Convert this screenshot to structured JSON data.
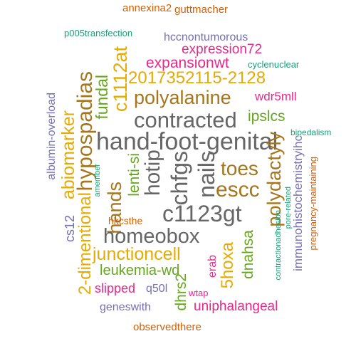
{
  "words": [
    {
      "id": "annexina2",
      "text": "annexina2",
      "color": "#d95f02"
    },
    {
      "id": "guttmacher",
      "text": "guttmacher",
      "color": "#d95f02"
    },
    {
      "id": "p005transfection",
      "text": "p005transfection",
      "color": "#1b9e77"
    },
    {
      "id": "hccnontumorous",
      "text": "hccnontumorous",
      "color": "#7570b3"
    },
    {
      "id": "expression72",
      "text": "expression72",
      "color": "#e7298a"
    },
    {
      "id": "expansionwt",
      "text": "expansionwt",
      "color": "#e7298a"
    },
    {
      "id": "cyclenuclear",
      "text": "cyclenuclear",
      "color": "#1b9e77"
    },
    {
      "id": "2017352115-2128",
      "text": "2017352115-2128",
      "color": "#e6ab02"
    },
    {
      "id": "c1112at",
      "text": "c1112at",
      "color": "#e6ab02"
    },
    {
      "id": "polyalanine",
      "text": "polyalanine",
      "color": "#a6761d"
    },
    {
      "id": "wdr5mll",
      "text": "wdr5mll",
      "color": "#e7298a"
    },
    {
      "id": "fundal",
      "text": "fundal",
      "color": "#66a61e"
    },
    {
      "id": "contracted",
      "text": "contracted",
      "color": "#666666"
    },
    {
      "id": "ipslcs",
      "text": "ipslcs",
      "color": "#66a61e"
    },
    {
      "id": "hypospadias",
      "text": "hypospadias",
      "color": "#a6761d"
    },
    {
      "id": "abiomarker",
      "text": "abiomarker",
      "color": "#e6ab02"
    },
    {
      "id": "hand-foot-genital",
      "text": "hand-foot-genital",
      "color": "#666666"
    },
    {
      "id": "bipedalism",
      "text": "bipedalism",
      "color": "#1b9e77"
    },
    {
      "id": "albumin-overload",
      "text": "albumin-overload",
      "color": "#7570b3"
    },
    {
      "id": "toes",
      "text": "toes",
      "color": "#a6761d"
    },
    {
      "id": "lenti-si",
      "text": "lenti-si",
      "color": "#66a61e"
    },
    {
      "id": "hotip",
      "text": "hotip",
      "color": "#666666"
    },
    {
      "id": "chfgs",
      "text": "chfgs",
      "color": "#666666"
    },
    {
      "id": "nails",
      "text": "nails",
      "color": "#666666"
    },
    {
      "id": "escc",
      "text": "escc",
      "color": "#a6761d"
    },
    {
      "id": "polydactyly",
      "text": "polydactyly",
      "color": "#a6761d"
    },
    {
      "id": "immunohistochemistryihc",
      "text": "immunohistochemistryihc",
      "color": "#7570b3"
    },
    {
      "id": "pregnancy-maintaining",
      "text": "pregnancy-maintaining",
      "color": "#d95f02"
    },
    {
      "id": "amember",
      "text": "amember",
      "color": "#1b9e77"
    },
    {
      "id": "hands",
      "text": "hands",
      "color": "#a6761d"
    },
    {
      "id": "c1123gt",
      "text": "c1123gt",
      "color": "#666666"
    },
    {
      "id": "pore-related",
      "text": "pore-related",
      "color": "#1b9e77"
    },
    {
      "id": "contractionadhesion",
      "text": "contractionadhesion",
      "color": "#1b9e77"
    },
    {
      "id": "2-dimentional",
      "text": "2-dimentional",
      "color": "#e6ab02"
    },
    {
      "id": "cs12",
      "text": "cs12",
      "color": "#7570b3"
    },
    {
      "id": "homeobox",
      "text": "homeobox",
      "color": "#666666"
    },
    {
      "id": "hkcsthe",
      "text": "hkcsthe",
      "color": "#d95f02"
    },
    {
      "id": "5hoxa",
      "text": "5hoxa",
      "color": "#e6ab02"
    },
    {
      "id": "dnahsa",
      "text": "dnahsa",
      "color": "#66a61e"
    },
    {
      "id": "junctioncell",
      "text": "junctioncell",
      "color": "#e6ab02"
    },
    {
      "id": "leukemia-wd",
      "text": "leukemia-wd",
      "color": "#66a61e"
    },
    {
      "id": "erab",
      "text": "erab",
      "color": "#e7298a"
    },
    {
      "id": "slipped",
      "text": "slipped",
      "color": "#e7298a"
    },
    {
      "id": "q50l",
      "text": "q50l",
      "color": "#7570b3"
    },
    {
      "id": "dhrs2",
      "text": "dhrs2",
      "color": "#66a61e"
    },
    {
      "id": "wtap",
      "text": "wtap",
      "color": "#e7298a"
    },
    {
      "id": "uniphalangeal",
      "text": "uniphalangeal",
      "color": "#e7298a"
    },
    {
      "id": "geneswith",
      "text": "geneswith",
      "color": "#7570b3"
    },
    {
      "id": "observedthere",
      "text": "observedthere",
      "color": "#d95f02"
    }
  ]
}
